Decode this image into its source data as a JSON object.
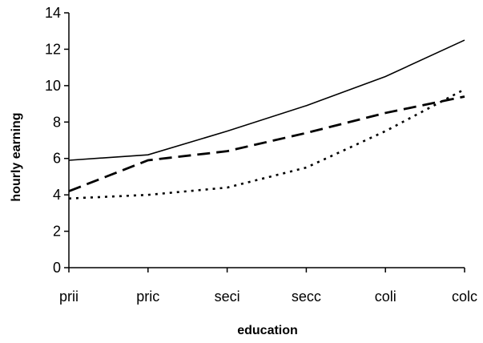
{
  "chart_data": {
    "type": "line",
    "title": "",
    "xlabel": "education",
    "ylabel": "hourly earning",
    "categories": [
      "prii",
      "pric",
      "seci",
      "secc",
      "coli",
      "colc"
    ],
    "ylim": [
      0,
      14
    ],
    "yticks": [
      "0",
      "2",
      "4",
      "6",
      "8",
      "10",
      "12",
      "14"
    ],
    "grid": false,
    "series": [
      {
        "values": [
          5.9,
          6.2,
          7.5,
          8.9,
          10.5,
          12.5
        ],
        "style": "solid"
      },
      {
        "values": [
          4.2,
          5.9,
          6.4,
          7.4,
          8.5,
          9.4
        ],
        "style": "dashed"
      },
      {
        "values": [
          3.8,
          4.0,
          4.4,
          5.5,
          7.5,
          9.8
        ],
        "style": "dotted"
      }
    ]
  }
}
